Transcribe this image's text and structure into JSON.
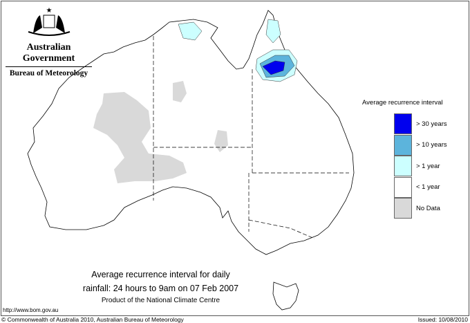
{
  "header": {
    "government": "Australian Government",
    "bureau": "Bureau of Meteorology",
    "logo": "commonwealth-coat-of-arms"
  },
  "legend": {
    "title": "Average recurrence interval",
    "items": [
      {
        "label": "> 30 years",
        "color": "#0000ee"
      },
      {
        "label": "> 10 years",
        "color": "#5cb4dc"
      },
      {
        "label": "> 1 year",
        "color": "#ccffff"
      },
      {
        "label": "< 1 year",
        "color": "#ffffff"
      },
      {
        "label": "No Data",
        "color": "#d9d9d9"
      }
    ]
  },
  "caption": {
    "line1": "Average recurrence interval for daily",
    "line2": "rainfall: 24 hours to 9am on 07 Feb 2007",
    "line3": "Product of the National Climate Centre"
  },
  "url": "http://www.bom.gov.au",
  "footer": {
    "copyright": "© Commonwealth of Australia 2010, Australian Bureau of Meteorology",
    "issued": "Issued: 10/08/2010"
  }
}
